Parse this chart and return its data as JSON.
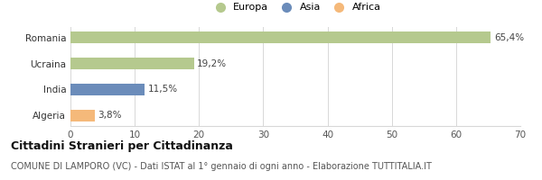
{
  "categories": [
    "Romania",
    "Ucraina",
    "India",
    "Algeria"
  ],
  "values": [
    65.4,
    19.2,
    11.5,
    3.8
  ],
  "labels": [
    "65,4%",
    "19,2%",
    "11,5%",
    "3,8%"
  ],
  "bar_colors": [
    "#b5c98e",
    "#b5c98e",
    "#6b8cba",
    "#f5b97a"
  ],
  "legend": [
    {
      "label": "Europa",
      "color": "#b5c98e"
    },
    {
      "label": "Asia",
      "color": "#6b8cba"
    },
    {
      "label": "Africa",
      "color": "#f5b97a"
    }
  ],
  "xlim": [
    0,
    70
  ],
  "xticks": [
    0,
    10,
    20,
    30,
    40,
    50,
    60,
    70
  ],
  "title": "Cittadini Stranieri per Cittadinanza",
  "subtitle": "COMUNE DI LAMPORO (VC) - Dati ISTAT al 1° gennaio di ogni anno - Elaborazione TUTTITALIA.IT",
  "background_color": "#ffffff",
  "grid_color": "#d8d8d8",
  "label_fontsize": 7.5,
  "axis_fontsize": 7.5,
  "title_fontsize": 9,
  "subtitle_fontsize": 7.0,
  "bar_height": 0.45
}
